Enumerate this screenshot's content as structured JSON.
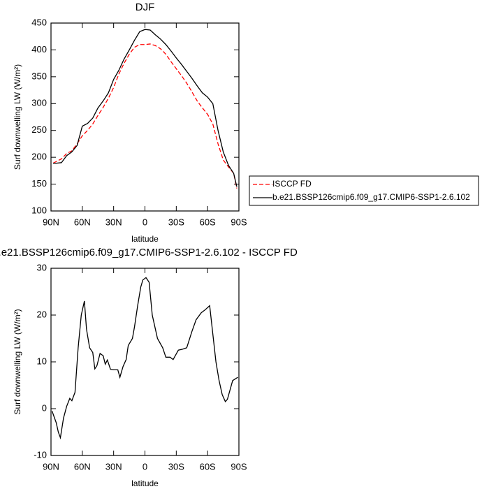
{
  "chart_data": [
    {
      "type": "line",
      "title": "DJF",
      "xlabel": "latitude",
      "ylabel": "Surf downwelling LW (W/m²)",
      "x": [
        88,
        85,
        80,
        75,
        70,
        65,
        60,
        55,
        50,
        45,
        40,
        35,
        30,
        25,
        20,
        15,
        10,
        5,
        0,
        -5,
        -10,
        -15,
        -20,
        -25,
        -30,
        -35,
        -40,
        -45,
        -50,
        -55,
        -60,
        -65,
        -70,
        -75,
        -80,
        -85,
        -88
      ],
      "series": [
        {
          "name": "ISCCP FD",
          "color": "#ff0000",
          "line_style": "dashed",
          "values": [
            189,
            192,
            197,
            207,
            212,
            225,
            240,
            250,
            262,
            278,
            293,
            310,
            330,
            355,
            375,
            392,
            405,
            410,
            410,
            411,
            408,
            402,
            392,
            378,
            365,
            352,
            338,
            322,
            305,
            292,
            280,
            262,
            225,
            195,
            182,
            170,
            142
          ]
        },
        {
          "name": "b.e21.BSSP126cmip6.f09_g17.CMIP6-SSP1-2.6.102",
          "color": "#000000",
          "line_style": "solid",
          "values": [
            189,
            189,
            190,
            203,
            210,
            222,
            258,
            263,
            273,
            292,
            305,
            320,
            345,
            362,
            383,
            400,
            418,
            434,
            438,
            437,
            428,
            420,
            410,
            398,
            385,
            373,
            360,
            347,
            333,
            320,
            312,
            300,
            250,
            210,
            185,
            170,
            145
          ]
        }
      ],
      "xlim": [
        90,
        -90
      ],
      "xticks": [
        {
          "value": 90,
          "label": "90N"
        },
        {
          "value": 60,
          "label": "60N"
        },
        {
          "value": 30,
          "label": "30N"
        },
        0,
        {
          "value": -30,
          "label": "30S"
        },
        {
          "value": -60,
          "label": "60S"
        },
        {
          "value": -90,
          "label": "90S"
        }
      ],
      "ylim": [
        100,
        450
      ],
      "yticks": [
        100,
        150,
        200,
        250,
        300,
        350,
        400,
        450
      ],
      "legend": "right"
    },
    {
      "type": "line",
      "title": "b.e21.BSSP126cmip6.f09_g17.CMIP6-SSP1-2.6.102 - ISCCP FD",
      "xlabel": "latitude",
      "ylabel": "Surf downwelling LW (W/m²)",
      "x": [
        89,
        85,
        83,
        81,
        78,
        75,
        72,
        70,
        67,
        64,
        61,
        58,
        56,
        53,
        50,
        48,
        46,
        43,
        40,
        38,
        36,
        33,
        30,
        26,
        24,
        21,
        18,
        16,
        12,
        10,
        7,
        4,
        2,
        -1,
        -4,
        -7,
        -12,
        -17,
        -20,
        -24,
        -27,
        -32,
        -36,
        -40,
        -45,
        -49,
        -54,
        -57,
        -62,
        -64,
        -68,
        -71,
        -74,
        -77,
        -79,
        -84,
        -89
      ],
      "values": [
        -0.5,
        -3,
        -5,
        -6.2,
        -2,
        0.5,
        2.2,
        1.7,
        3.5,
        13,
        20,
        23,
        17,
        13,
        12,
        8.5,
        9.2,
        11.8,
        11.3,
        9.5,
        10.4,
        8.4,
        8.3,
        8.3,
        6.7,
        9,
        10.5,
        13.5,
        15,
        17.5,
        22,
        26,
        27.5,
        28,
        27,
        20,
        15,
        13,
        11,
        11,
        10.5,
        12.5,
        12.7,
        13,
        16.5,
        19,
        20.5,
        21,
        22,
        18,
        10,
        6,
        3,
        1.5,
        2,
        6,
        6.7
      ],
      "color": "#000000",
      "xlim": [
        90,
        -90
      ],
      "xticks": [
        {
          "value": 90,
          "label": "90N"
        },
        {
          "value": 60,
          "label": "60N"
        },
        {
          "value": 30,
          "label": "30N"
        },
        0,
        {
          "value": -30,
          "label": "30S"
        },
        {
          "value": -60,
          "label": "60S"
        },
        {
          "value": -90,
          "label": "90S"
        }
      ],
      "ylim": [
        -10,
        30
      ],
      "yticks": [
        -10,
        0,
        10,
        20,
        30
      ]
    }
  ]
}
